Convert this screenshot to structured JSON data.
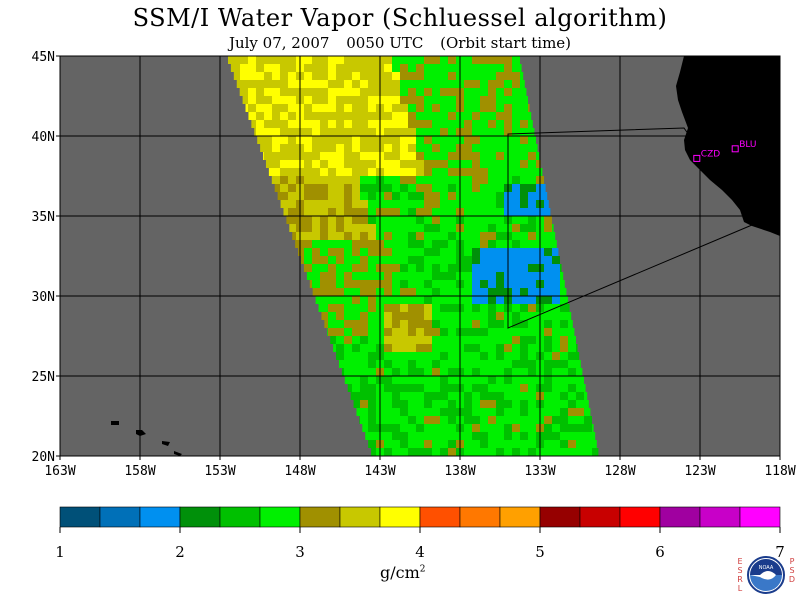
{
  "title": "SSM/I Water Vapor (Schluessel algorithm)",
  "subtitle": {
    "date": "July 07, 2007",
    "time": "0050 UTC",
    "note": "(Orbit start time)"
  },
  "map": {
    "lat_labels": [
      "45N",
      "40N",
      "35N",
      "30N",
      "25N",
      "20N"
    ],
    "lon_labels": [
      "163W",
      "158W",
      "153W",
      "148W",
      "143W",
      "138W",
      "133W",
      "128W",
      "123W",
      "118W"
    ],
    "lat_range": [
      20,
      45
    ],
    "lon_range": [
      -163,
      -118
    ],
    "stations": [
      {
        "label": "CZD",
        "lat": 38.6,
        "lon": -123.2
      },
      {
        "label": "BLU",
        "lat": 39.2,
        "lon": -120.8
      }
    ],
    "colors": {
      "background": "#646464",
      "land": "#000000",
      "grid": "#000000",
      "station": "#ff00ff"
    }
  },
  "colorbar": {
    "tick_labels": [
      "1",
      "2",
      "3",
      "4",
      "5",
      "6",
      "7"
    ],
    "units": "g/cm",
    "units_sup": "2",
    "colors": [
      "#005078",
      "#0070b8",
      "#0090f0",
      "#00900a",
      "#00c000",
      "#00f000",
      "#a09000",
      "#c8c800",
      "#ffff00",
      "#ff5000",
      "#ff7800",
      "#ffa000",
      "#960000",
      "#c80000",
      "#ff0000",
      "#a000a0",
      "#c800c8",
      "#ff00ff"
    ]
  },
  "logo": {
    "left_text": "ESRL",
    "right_text": "PSD",
    "center_text": "NOAA"
  }
}
